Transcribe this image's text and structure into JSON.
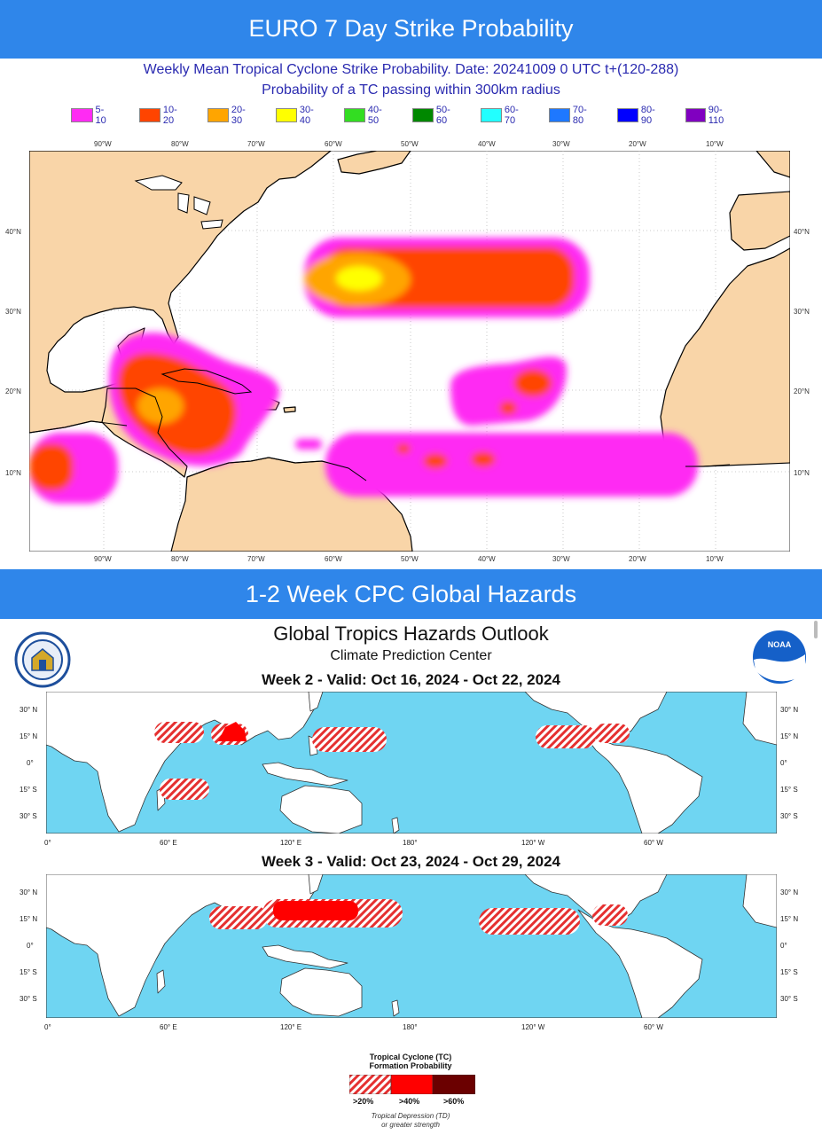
{
  "banners": {
    "top": "EURO 7 Day Strike Probability",
    "middle": "1-2 Week CPC Global Hazards"
  },
  "euro": {
    "title_line1": "Weekly Mean Tropical Cyclone Strike Probability. Date: 20241009  0 UTC   t+(120-288)",
    "title_line2": "Probability of a TC passing within  300km radius",
    "legend": [
      {
        "label": "5-10",
        "color": "#ff2bf3"
      },
      {
        "label": "10-20",
        "color": "#ff4400"
      },
      {
        "label": "20-30",
        "color": "#ffa500"
      },
      {
        "label": "30-40",
        "color": "#ffff00"
      },
      {
        "label": "40-50",
        "color": "#33dd22"
      },
      {
        "label": "50-60",
        "color": "#008800"
      },
      {
        "label": "60-70",
        "color": "#22ffff"
      },
      {
        "label": "70-80",
        "color": "#1e78ff"
      },
      {
        "label": "80-90",
        "color": "#0000ff"
      },
      {
        "label": "90-110",
        "color": "#8000c0"
      }
    ],
    "lon_labels": [
      "90°W",
      "80°W",
      "70°W",
      "60°W",
      "50°W",
      "40°W",
      "30°W",
      "20°W",
      "10°W"
    ],
    "lat_labels": [
      "40°N",
      "30°N",
      "20°N",
      "10°N"
    ],
    "colors": {
      "land": "#f9d5a8",
      "ocean": "#ffffff",
      "border": "#000000"
    }
  },
  "cpc": {
    "title": "Global Tropics Hazards Outlook",
    "subtitle": "Climate Prediction Center",
    "week2_title": "Week 2 - Valid: Oct 16, 2024 - Oct 22, 2024",
    "week3_title": "Week 3 - Valid: Oct 23, 2024 - Oct 29, 2024",
    "lon_labels": [
      "0°",
      "60° E",
      "120° E",
      "180°",
      "120° W",
      "60° W"
    ],
    "lat_labels": [
      "30° N",
      "15° N",
      "0°",
      "15° S",
      "30° S"
    ],
    "legend": {
      "title_line1": "Tropical Cyclone (TC)",
      "title_line2": "Formation Probability",
      "items": [
        {
          "label": ">20%",
          "color": "#e53030"
        },
        {
          "label": ">40%",
          "color": "#ff0000"
        },
        {
          "label": ">60%",
          "color": "#6b0000"
        }
      ],
      "note_line1": "Tropical Depression (TD)",
      "note_line2": "or greater strength"
    },
    "colors": {
      "ocean": "#6fd5f2",
      "land": "#ffffff",
      "hazard": "#ff0000"
    },
    "logos": [
      "commerce-seal-icon",
      "noaa-logo-icon"
    ],
    "noaa_logo_text": "NOAA"
  }
}
